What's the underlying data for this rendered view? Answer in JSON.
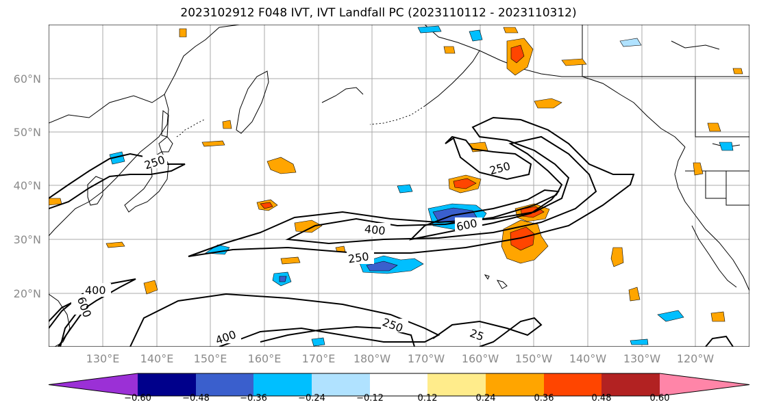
{
  "title": "2023102912 F048 IVT, IVT Landfall PC (2023110112 - 2023110312)",
  "latitude_labels": [
    "60°N",
    "50°N",
    "40°N",
    "30°N",
    "20°N"
  ],
  "longitude_labels": [
    "130°E",
    "140°E",
    "150°E",
    "160°E",
    "170°E",
    "180°W",
    "170°W",
    "160°W",
    "150°W",
    "140°W",
    "130°W",
    "120°W"
  ],
  "contour_labels": [
    "250",
    "250",
    "400",
    "600",
    "250",
    "400",
    "600",
    "400",
    "250",
    "25"
  ],
  "colorbar": {
    "colors": [
      "#9b30d6",
      "#00008b",
      "#3a5fcd",
      "#00bfff",
      "#b0e2ff",
      "#ffffff",
      "#ffec8b",
      "#ffa500",
      "#ff4500",
      "#b22222",
      "#ff85a8"
    ],
    "tick_labels": [
      "−0.60",
      "−0.48",
      "−0.36",
      "−0.24",
      "−0.12",
      "0.12",
      "0.24",
      "0.36",
      "0.48",
      "0.60"
    ]
  }
}
